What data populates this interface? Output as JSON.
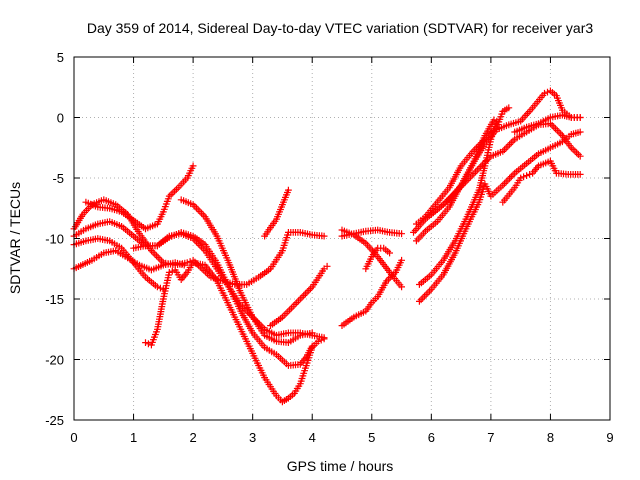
{
  "chart_data": {
    "type": "scatter",
    "title": "Day 359 of 2014, Sidereal Day-to-day VTEC variation (SDTVAR) for receiver yar3",
    "xlabel": "GPS time / hours",
    "ylabel": "SDTVAR / TECUs",
    "xlim": [
      0,
      9
    ],
    "ylim": [
      -25,
      5
    ],
    "xticks": [
      0,
      1,
      2,
      3,
      4,
      5,
      6,
      7,
      8,
      9
    ],
    "yticks": [
      -25,
      -20,
      -15,
      -10,
      -5,
      0,
      5
    ],
    "grid": true,
    "marker": "plus",
    "color": "#ff0000",
    "series": [
      {
        "points": [
          [
            0.0,
            -9.2
          ],
          [
            0.15,
            -8.0
          ],
          [
            0.3,
            -7.2
          ],
          [
            0.5,
            -6.8
          ],
          [
            0.7,
            -7.2
          ],
          [
            0.9,
            -8.0
          ],
          [
            1.1,
            -9.6
          ],
          [
            1.3,
            -11.0
          ],
          [
            1.5,
            -12.0
          ],
          [
            1.7,
            -12.2
          ],
          [
            1.9,
            -12.0
          ],
          [
            2.0,
            -11.8
          ],
          [
            2.15,
            -12.5
          ],
          [
            2.3,
            -13.2
          ],
          [
            2.5,
            -13.5
          ],
          [
            2.7,
            -13.8
          ],
          [
            2.9,
            -13.8
          ],
          [
            3.1,
            -13.2
          ],
          [
            3.3,
            -12.5
          ],
          [
            3.5,
            -11.0
          ],
          [
            3.6,
            -9.5
          ],
          [
            3.8,
            -9.5
          ],
          [
            4.0,
            -9.7
          ],
          [
            4.2,
            -9.8
          ]
        ]
      },
      {
        "points": [
          [
            0.0,
            -9.8
          ],
          [
            0.2,
            -9.2
          ],
          [
            0.4,
            -8.8
          ],
          [
            0.6,
            -8.6
          ],
          [
            0.8,
            -9.0
          ],
          [
            1.0,
            -9.8
          ],
          [
            1.2,
            -10.6
          ],
          [
            1.4,
            -10.6
          ],
          [
            1.6,
            -9.8
          ],
          [
            1.8,
            -9.6
          ],
          [
            2.0,
            -10.0
          ],
          [
            2.2,
            -11.0
          ],
          [
            2.4,
            -12.5
          ],
          [
            2.6,
            -14.0
          ],
          [
            2.8,
            -15.5
          ],
          [
            3.0,
            -16.5
          ],
          [
            3.2,
            -17.5
          ],
          [
            3.4,
            -18.0
          ],
          [
            3.6,
            -17.8
          ],
          [
            3.8,
            -17.8
          ],
          [
            4.0,
            -18.0
          ],
          [
            4.2,
            -18.2
          ]
        ]
      },
      {
        "points": [
          [
            0.0,
            -10.5
          ],
          [
            0.2,
            -10.2
          ],
          [
            0.4,
            -10.0
          ],
          [
            0.6,
            -10.2
          ],
          [
            0.8,
            -10.8
          ],
          [
            1.0,
            -12.0
          ],
          [
            1.2,
            -13.2
          ],
          [
            1.4,
            -14.0
          ],
          [
            1.5,
            -14.2
          ]
        ]
      },
      {
        "points": [
          [
            0.0,
            -12.5
          ],
          [
            0.3,
            -11.8
          ],
          [
            0.5,
            -11.2
          ],
          [
            0.7,
            -11.0
          ],
          [
            0.9,
            -11.6
          ],
          [
            1.1,
            -12.2
          ],
          [
            1.3,
            -12.6
          ],
          [
            1.5,
            -12.2
          ],
          [
            1.7,
            -12.0
          ],
          [
            1.85,
            -12.2
          ]
        ]
      },
      {
        "points": [
          [
            1.2,
            -18.6
          ],
          [
            1.3,
            -18.8
          ],
          [
            1.4,
            -17.5
          ],
          [
            1.5,
            -15.0
          ],
          [
            1.6,
            -12.8
          ],
          [
            1.7,
            -12.6
          ],
          [
            1.8,
            -13.4
          ],
          [
            1.9,
            -12.8
          ],
          [
            2.0,
            -12.0
          ],
          [
            2.2,
            -12.2
          ],
          [
            2.4,
            -13.5
          ],
          [
            2.6,
            -15.5
          ],
          [
            2.8,
            -17.5
          ],
          [
            3.0,
            -19.5
          ],
          [
            3.2,
            -21.5
          ],
          [
            3.4,
            -23.0
          ],
          [
            3.5,
            -23.5
          ],
          [
            3.6,
            -23.2
          ],
          [
            3.7,
            -22.8
          ],
          [
            3.8,
            -22.0
          ],
          [
            3.9,
            -20.5
          ],
          [
            4.0,
            -19.0
          ],
          [
            4.1,
            -18.5
          ],
          [
            4.2,
            -18.3
          ]
        ]
      },
      {
        "points": [
          [
            0.2,
            -7.0
          ],
          [
            0.4,
            -7.4
          ],
          [
            0.6,
            -7.5
          ],
          [
            0.8,
            -7.8
          ],
          [
            1.0,
            -8.5
          ],
          [
            1.2,
            -9.2
          ],
          [
            1.4,
            -8.8
          ],
          [
            1.5,
            -7.8
          ],
          [
            1.6,
            -6.5
          ],
          [
            1.75,
            -5.8
          ],
          [
            1.9,
            -5.0
          ],
          [
            2.0,
            -4.0
          ]
        ]
      },
      {
        "points": [
          [
            1.8,
            -6.8
          ],
          [
            2.0,
            -7.2
          ],
          [
            2.2,
            -8.2
          ],
          [
            2.4,
            -9.8
          ],
          [
            2.6,
            -12.0
          ],
          [
            2.8,
            -14.5
          ],
          [
            3.0,
            -16.5
          ],
          [
            3.2,
            -18.0
          ],
          [
            3.4,
            -18.5
          ],
          [
            3.6,
            -18.6
          ],
          [
            3.8,
            -18.0
          ],
          [
            4.0,
            -17.8
          ]
        ]
      },
      {
        "points": [
          [
            1.0,
            -10.8
          ],
          [
            1.2,
            -10.6
          ],
          [
            1.4,
            -10.6
          ],
          [
            1.6,
            -9.9
          ],
          [
            1.8,
            -9.5
          ],
          [
            2.0,
            -9.8
          ],
          [
            2.2,
            -10.5
          ],
          [
            2.4,
            -12.0
          ],
          [
            2.6,
            -14.0
          ],
          [
            2.8,
            -16.0
          ],
          [
            3.0,
            -17.8
          ],
          [
            3.2,
            -19.0
          ],
          [
            3.4,
            -19.6
          ],
          [
            3.6,
            -20.5
          ],
          [
            3.8,
            -20.4
          ],
          [
            3.9,
            -19.8
          ],
          [
            4.0,
            -18.9
          ]
        ]
      },
      {
        "points": [
          [
            3.2,
            -9.8
          ],
          [
            3.4,
            -8.4
          ],
          [
            3.6,
            -6.0
          ]
        ]
      },
      {
        "points": [
          [
            3.3,
            -17.2
          ],
          [
            3.5,
            -16.5
          ],
          [
            3.8,
            -15.0
          ],
          [
            4.0,
            -14.0
          ],
          [
            4.2,
            -12.5
          ],
          [
            4.25,
            -12.3
          ]
        ]
      },
      {
        "points": [
          [
            4.5,
            -9.8
          ],
          [
            4.7,
            -9.6
          ],
          [
            4.9,
            -9.4
          ],
          [
            5.1,
            -9.3
          ],
          [
            5.3,
            -9.5
          ],
          [
            5.5,
            -9.6
          ]
        ]
      },
      {
        "points": [
          [
            4.5,
            -9.3
          ],
          [
            4.7,
            -9.7
          ],
          [
            4.9,
            -10.4
          ],
          [
            5.1,
            -11.5
          ],
          [
            5.3,
            -12.8
          ],
          [
            5.5,
            -14.0
          ]
        ]
      },
      {
        "points": [
          [
            4.5,
            -17.2
          ],
          [
            4.7,
            -16.5
          ],
          [
            4.9,
            -16.0
          ],
          [
            5.0,
            -15.3
          ],
          [
            5.1,
            -14.8
          ],
          [
            5.25,
            -13.5
          ],
          [
            5.4,
            -12.8
          ],
          [
            5.5,
            -11.8
          ]
        ]
      },
      {
        "points": [
          [
            4.9,
            -12.5
          ],
          [
            5.0,
            -11.5
          ],
          [
            5.1,
            -10.8
          ],
          [
            5.2,
            -10.8
          ],
          [
            5.3,
            -11.2
          ]
        ]
      },
      {
        "points": [
          [
            5.7,
            -9.5
          ],
          [
            5.9,
            -8.4
          ],
          [
            6.1,
            -7.6
          ],
          [
            6.3,
            -6.8
          ],
          [
            6.5,
            -5.6
          ],
          [
            6.7,
            -3.8
          ],
          [
            6.9,
            -2.2
          ],
          [
            7.1,
            -1.0
          ],
          [
            7.3,
            -0.6
          ],
          [
            7.5,
            -0.3
          ],
          [
            7.7,
            0.8
          ],
          [
            7.9,
            2.0
          ],
          [
            8.0,
            2.2
          ],
          [
            8.1,
            1.8
          ],
          [
            8.2,
            0.6
          ],
          [
            8.35,
            0.0
          ],
          [
            8.5,
            0.0
          ]
        ]
      },
      {
        "points": [
          [
            5.75,
            -8.8
          ],
          [
            5.9,
            -8.2
          ],
          [
            6.1,
            -7.0
          ],
          [
            6.3,
            -5.8
          ],
          [
            6.5,
            -4.0
          ],
          [
            6.7,
            -2.8
          ],
          [
            6.9,
            -1.8
          ],
          [
            7.1,
            -0.8
          ],
          [
            7.2,
            0.5
          ],
          [
            7.3,
            0.8
          ]
        ]
      },
      {
        "points": [
          [
            5.75,
            -10.2
          ],
          [
            5.9,
            -9.4
          ],
          [
            6.1,
            -8.6
          ],
          [
            6.3,
            -7.4
          ],
          [
            6.5,
            -5.6
          ],
          [
            6.7,
            -3.8
          ],
          [
            6.9,
            -1.5
          ],
          [
            7.05,
            -0.2
          ]
        ]
      },
      {
        "points": [
          [
            5.8,
            -13.8
          ],
          [
            6.0,
            -13.0
          ],
          [
            6.2,
            -11.8
          ],
          [
            6.4,
            -10.2
          ],
          [
            6.6,
            -8.2
          ],
          [
            6.8,
            -6.0
          ],
          [
            6.9,
            -4.0
          ],
          [
            7.0,
            -1.8
          ],
          [
            7.1,
            -0.3
          ]
        ]
      },
      {
        "points": [
          [
            5.8,
            -15.2
          ],
          [
            6.0,
            -14.2
          ],
          [
            6.2,
            -13.0
          ],
          [
            6.4,
            -11.2
          ],
          [
            6.6,
            -9.0
          ],
          [
            6.8,
            -7.0
          ],
          [
            6.9,
            -5.5
          ],
          [
            7.0,
            -6.5
          ],
          [
            7.2,
            -5.6
          ],
          [
            7.4,
            -4.6
          ],
          [
            7.6,
            -3.8
          ],
          [
            7.8,
            -3.0
          ],
          [
            8.0,
            -2.5
          ],
          [
            8.2,
            -2.0
          ],
          [
            8.35,
            -1.4
          ],
          [
            8.5,
            -1.2
          ]
        ]
      },
      {
        "points": [
          [
            6.0,
            -8.0
          ],
          [
            6.2,
            -7.2
          ],
          [
            6.4,
            -6.2
          ],
          [
            6.6,
            -5.2
          ],
          [
            6.8,
            -4.2
          ],
          [
            7.0,
            -3.2
          ],
          [
            7.2,
            -2.8
          ],
          [
            7.4,
            -1.8
          ],
          [
            7.6,
            -1.2
          ],
          [
            7.8,
            -0.6
          ],
          [
            8.0,
            -0.5
          ],
          [
            8.2,
            -1.5
          ],
          [
            8.35,
            -2.5
          ],
          [
            8.5,
            -3.2
          ]
        ]
      },
      {
        "points": [
          [
            7.2,
            -7.0
          ],
          [
            7.4,
            -5.8
          ],
          [
            7.5,
            -5.0
          ],
          [
            7.6,
            -4.8
          ],
          [
            7.7,
            -4.6
          ],
          [
            7.8,
            -4.0
          ],
          [
            8.0,
            -3.6
          ],
          [
            8.1,
            -4.6
          ],
          [
            8.3,
            -4.7
          ],
          [
            8.5,
            -4.7
          ]
        ]
      },
      {
        "points": [
          [
            7.4,
            -1.2
          ],
          [
            7.6,
            -0.8
          ],
          [
            7.8,
            -0.5
          ],
          [
            8.0,
            0.0
          ],
          [
            8.2,
            0.2
          ],
          [
            8.35,
            0.0
          ],
          [
            8.5,
            0.0
          ]
        ]
      }
    ]
  }
}
